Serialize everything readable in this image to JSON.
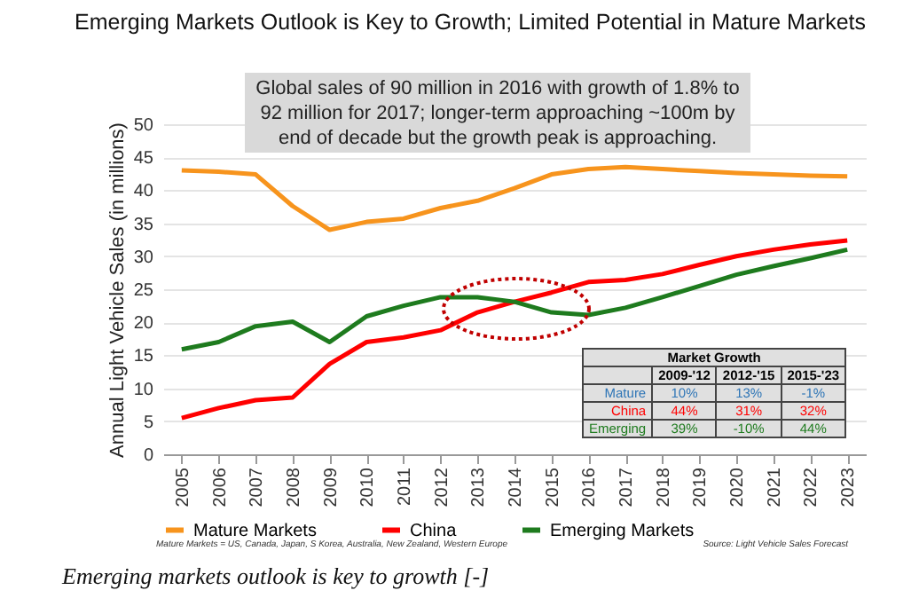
{
  "chart_data": {
    "type": "line",
    "title": "Emerging Markets Outlook is Key to Growth; Limited Potential in Mature Markets",
    "ylabel": "Annual Light Vehicle Sales (in millions)",
    "categories": [
      "2005",
      "2006",
      "2007",
      "2008",
      "2009",
      "2010",
      "2011",
      "2012",
      "2013",
      "2014",
      "2015",
      "2016",
      "2017",
      "2018",
      "2019",
      "2020",
      "2021",
      "2022",
      "2023"
    ],
    "series": [
      {
        "name": "Mature Markets",
        "color": "#f7941d",
        "values": [
          43.0,
          42.8,
          42.4,
          37.6,
          34.0,
          35.2,
          35.7,
          37.3,
          38.4,
          40.3,
          42.4,
          43.2,
          43.5,
          43.2,
          42.9,
          42.6,
          42.4,
          42.2,
          42.1
        ]
      },
      {
        "name": "China",
        "color": "#ff0000",
        "values": [
          5.5,
          7.0,
          8.2,
          8.6,
          13.7,
          17.0,
          17.7,
          18.8,
          21.5,
          23.1,
          24.5,
          26.1,
          26.4,
          27.3,
          28.7,
          30.0,
          31.0,
          31.8,
          32.4
        ]
      },
      {
        "name": "Emerging Markets",
        "color": "#1e7b1e",
        "values": [
          15.9,
          17.0,
          19.4,
          20.1,
          17.0,
          20.9,
          22.5,
          23.8,
          23.8,
          23.1,
          21.5,
          21.1,
          22.2,
          23.8,
          25.5,
          27.2,
          28.5,
          29.7,
          31.0
        ]
      }
    ],
    "ylim": [
      0,
      50
    ],
    "yticks": [
      0,
      5,
      10,
      15,
      20,
      25,
      30,
      35,
      40,
      45,
      50
    ],
    "grid": "y",
    "legend": "bottom",
    "line_style": "solid",
    "marker": "none",
    "annotations": [
      "Global sales of 90 million in 2016 with growth of 1.8% to 92 million for 2017; longer-term approaching ~100m by end of decade but the growth peak is approaching.",
      "Mature Markets = US, Canada, Japan, S Korea, Australia, New Zealand, Western Europe",
      "Source: Light Vehicle Sales Forecast",
      "Emerging markets outlook is key to growth [-]",
      "Market Growth",
      "2009-'12",
      "2012-'15",
      "2015-'23",
      "Mature",
      "10%",
      "13%",
      "-1%",
      "China",
      "44%",
      "31%",
      "32%",
      "Emerging",
      "39%",
      "-10%",
      "44%"
    ]
  }
}
